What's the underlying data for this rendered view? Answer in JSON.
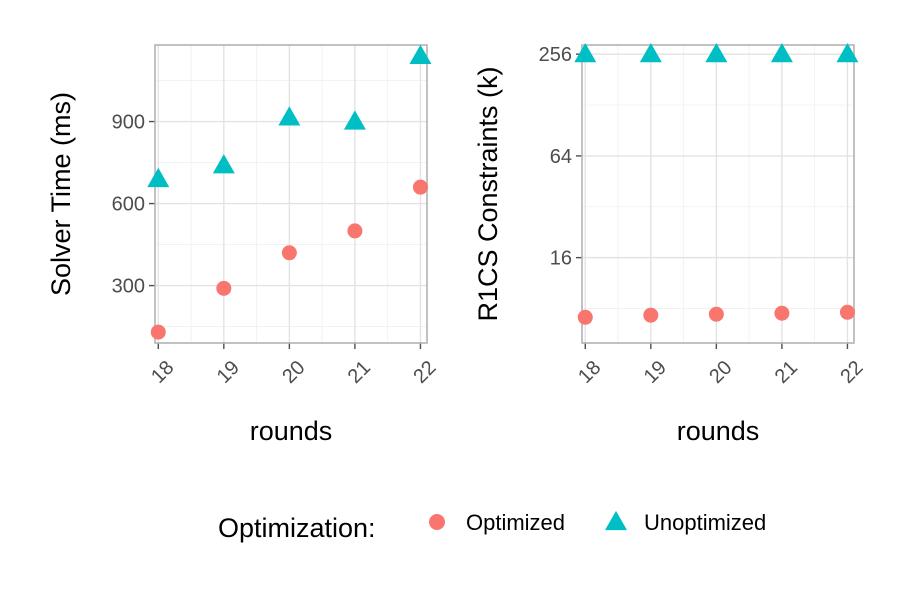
{
  "chart_data": [
    {
      "type": "scatter",
      "xlabel": "rounds",
      "ylabel": "Solver Time (ms)",
      "x_ticks": [
        18,
        19,
        20,
        21,
        22
      ],
      "x_range": [
        17.95,
        22.1
      ],
      "y_ticks": [
        300,
        600,
        900
      ],
      "y_range": [
        90,
        1180
      ],
      "y_scale": "linear",
      "grid": true,
      "series": [
        {
          "name": "Optimized",
          "marker": "circle",
          "color": "#F8766D",
          "x": [
            18,
            19,
            20,
            21,
            22
          ],
          "y": [
            130,
            290,
            420,
            500,
            660
          ]
        },
        {
          "name": "Unoptimized",
          "marker": "triangle",
          "color": "#00BFC4",
          "x": [
            18,
            19,
            20,
            21,
            22
          ],
          "y": [
            690,
            740,
            915,
            900,
            1140
          ]
        }
      ]
    },
    {
      "type": "scatter",
      "xlabel": "rounds",
      "ylabel": "R1CS Constraints (k)",
      "x_ticks": [
        18,
        19,
        20,
        21,
        22
      ],
      "x_range": [
        17.95,
        22.1
      ],
      "y_ticks": [
        16,
        64,
        256
      ],
      "y_range": [
        5,
        290
      ],
      "y_scale": "log2",
      "grid": true,
      "series": [
        {
          "name": "Optimized",
          "marker": "circle",
          "color": "#F8766D",
          "x": [
            18,
            19,
            20,
            21,
            22
          ],
          "y": [
            7.1,
            7.3,
            7.4,
            7.5,
            7.6
          ]
        },
        {
          "name": "Unoptimized",
          "marker": "triangle",
          "color": "#00BFC4",
          "x": [
            18,
            19,
            20,
            21,
            22
          ],
          "y": [
            256,
            256,
            256,
            256,
            256
          ]
        }
      ]
    }
  ],
  "legend": {
    "title": "Optimization:",
    "placement": "bottom",
    "items": [
      {
        "label": "Optimized",
        "marker": "circle",
        "color": "#F8766D"
      },
      {
        "label": "Unoptimized",
        "marker": "triangle",
        "color": "#00BFC4"
      }
    ]
  }
}
